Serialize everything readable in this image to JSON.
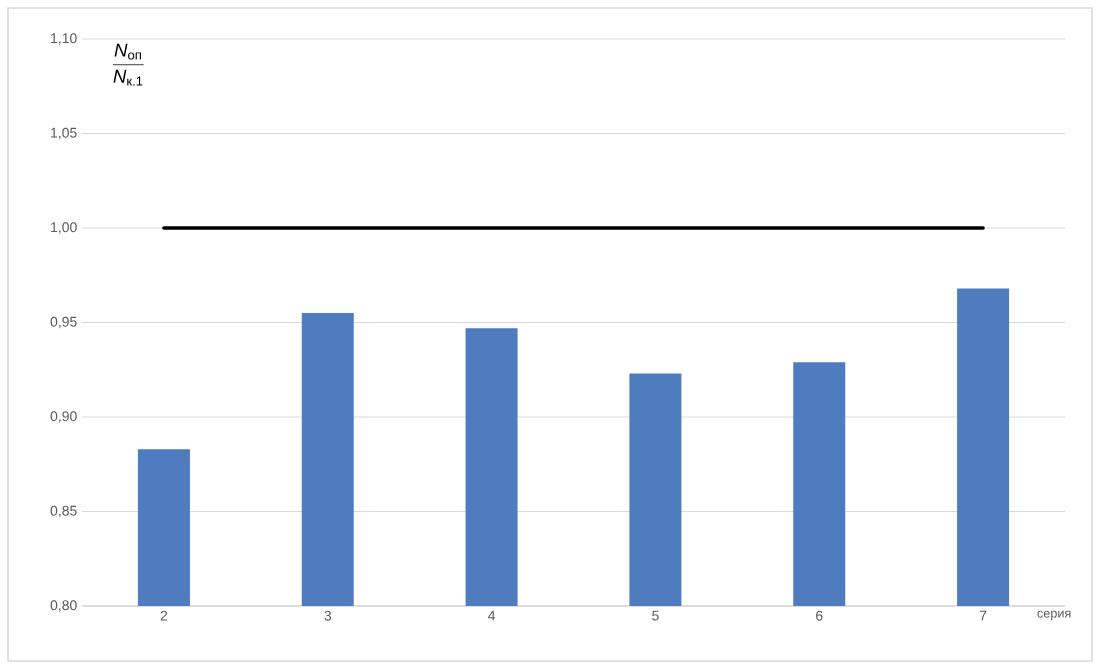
{
  "chart_data": {
    "type": "bar",
    "xlabel": "серия",
    "ylabel": "\\frac{\\textit{N}_{\\text{оп}}}{\\textit{N}_{\\text{к.1}}}",
    "categories": [
      "2",
      "3",
      "4",
      "5",
      "6",
      "7"
    ],
    "series": [
      {
        "color": "#4f7bbf",
        "values": [
          0.883,
          0.955,
          0.947,
          0.923,
          0.929,
          0.968
        ]
      },
      {
        "type": "line",
        "color": "#000000",
        "values": [
          1.0,
          1.0,
          1.0,
          1.0,
          1.0,
          1.0
        ]
      }
    ],
    "ylim": [
      0.8,
      1.1
    ],
    "yticks": [
      {
        "value": 0.8,
        "label": "0,80"
      },
      {
        "value": 0.85,
        "label": "0,85"
      },
      {
        "value": 0.9,
        "label": "0,90"
      },
      {
        "value": 0.95,
        "label": "0,95"
      },
      {
        "value": 1.0,
        "label": "1,00"
      },
      {
        "value": 1.05,
        "label": "1,05"
      },
      {
        "value": 1.1,
        "label": "1,10"
      }
    ],
    "grid": "y"
  }
}
